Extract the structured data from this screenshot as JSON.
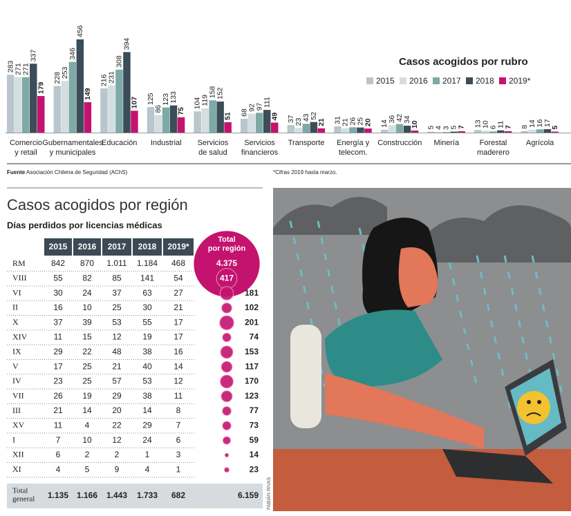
{
  "chart_data": {
    "type": "bar",
    "title": "Casos acogidos por rubro",
    "categories": [
      [
        "Comercio",
        "y retail"
      ],
      [
        "Gubernamentales",
        "y municipales"
      ],
      [
        "Educación"
      ],
      [
        "Industrial"
      ],
      [
        "Servicios",
        "de salud"
      ],
      [
        "Servicios",
        "financieros"
      ],
      [
        "Transporte"
      ],
      [
        "Energía y",
        "telecom."
      ],
      [
        "Construcción"
      ],
      [
        "Minería"
      ],
      [
        "Forestal",
        "maderero"
      ],
      [
        "Agrícola"
      ]
    ],
    "series": [
      {
        "name": "2015",
        "color": "#b9c6cd",
        "values": [
          283,
          228,
          216,
          125,
          104,
          68,
          37,
          31,
          14,
          5,
          13,
          8
        ]
      },
      {
        "name": "2016",
        "color": "#d3dee0",
        "values": [
          271,
          253,
          231,
          86,
          119,
          92,
          23,
          21,
          36,
          4,
          10,
          14
        ]
      },
      {
        "name": "2017",
        "color": "#7ea9a6",
        "values": [
          271,
          346,
          308,
          123,
          158,
          97,
          43,
          26,
          42,
          3,
          6,
          16
        ]
      },
      {
        "name": "2018",
        "color": "#3b4d58",
        "values": [
          337,
          456,
          394,
          133,
          152,
          111,
          52,
          25,
          34,
          5,
          11,
          17
        ]
      },
      {
        "name": "2019*",
        "color": "#c4136f",
        "values": [
          179,
          149,
          107,
          75,
          51,
          49,
          21,
          20,
          10,
          7,
          7,
          5
        ]
      }
    ],
    "source_label": "Fuente",
    "source": "Asociación Chilena de Seguridad (AChS)",
    "note": "*Cifras 2019 hasta marzo."
  },
  "table": {
    "title": "Casos acogidos por región",
    "subtitle": "Días perdidos por licencias médicas",
    "columns": [
      "2015",
      "2016",
      "2017",
      "2018",
      "2019*"
    ],
    "total_header": [
      "Total",
      "por región"
    ],
    "rows": [
      {
        "label": "RM",
        "values": [
          "842",
          "870",
          "1.011",
          "1.184",
          "468"
        ],
        "total": 4375,
        "total_label": "4.375"
      },
      {
        "label": "VIII",
        "values": [
          "55",
          "82",
          "85",
          "141",
          "54"
        ],
        "total": 417,
        "total_label": "417"
      },
      {
        "label": "VI",
        "values": [
          "30",
          "24",
          "37",
          "63",
          "27"
        ],
        "total": 181,
        "total_label": "181"
      },
      {
        "label": "II",
        "values": [
          "16",
          "10",
          "25",
          "30",
          "21"
        ],
        "total": 102,
        "total_label": "102"
      },
      {
        "label": "X",
        "values": [
          "37",
          "39",
          "53",
          "55",
          "17"
        ],
        "total": 201,
        "total_label": "201"
      },
      {
        "label": "XIV",
        "values": [
          "11",
          "15",
          "12",
          "19",
          "17"
        ],
        "total": 74,
        "total_label": "74"
      },
      {
        "label": "IX",
        "values": [
          "29",
          "22",
          "48",
          "38",
          "16"
        ],
        "total": 153,
        "total_label": "153"
      },
      {
        "label": "V",
        "values": [
          "17",
          "25",
          "21",
          "40",
          "14"
        ],
        "total": 117,
        "total_label": "117"
      },
      {
        "label": "IV",
        "values": [
          "23",
          "25",
          "57",
          "53",
          "12"
        ],
        "total": 170,
        "total_label": "170"
      },
      {
        "label": "VII",
        "values": [
          "26",
          "19",
          "29",
          "38",
          "11"
        ],
        "total": 123,
        "total_label": "123"
      },
      {
        "label": "III",
        "values": [
          "21",
          "14",
          "20",
          "14",
          "8"
        ],
        "total": 77,
        "total_label": "77"
      },
      {
        "label": "XV",
        "values": [
          "11",
          "4",
          "22",
          "29",
          "7"
        ],
        "total": 73,
        "total_label": "73"
      },
      {
        "label": "I",
        "values": [
          "7",
          "10",
          "12",
          "24",
          "6"
        ],
        "total": 59,
        "total_label": "59"
      },
      {
        "label": "XII",
        "values": [
          "6",
          "2",
          "2",
          "1",
          "3"
        ],
        "total": 14,
        "total_label": "14"
      },
      {
        "label": "XI",
        "values": [
          "4",
          "5",
          "9",
          "4",
          "1"
        ],
        "total": 23,
        "total_label": "23"
      }
    ],
    "total_row": {
      "label": [
        "Total",
        "general"
      ],
      "values": [
        "1.135",
        "1.166",
        "1.443",
        "1.733",
        "682"
      ],
      "total": "6.159"
    }
  },
  "illustration": {
    "credit": "FABIÁN RIVAS"
  }
}
